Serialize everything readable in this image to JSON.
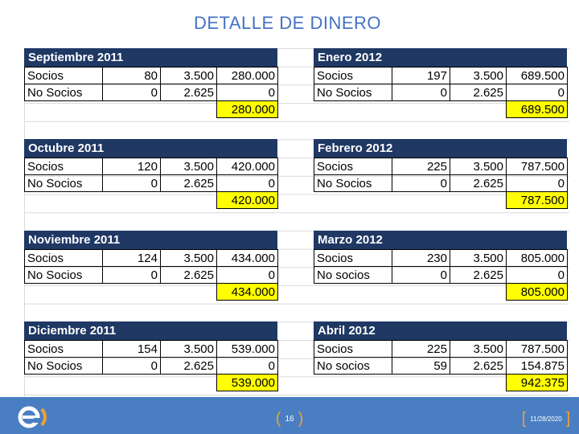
{
  "title": "DETALLE DE DINERO",
  "blocks": [
    {
      "month": "Septiembre 2011",
      "rows": [
        {
          "label": "Socios",
          "count": "80",
          "price": "3.500",
          "amount": "280.000"
        },
        {
          "label": "No Socios",
          "count": "0",
          "price": "2.625",
          "amount": "0"
        }
      ],
      "total": "280.000"
    },
    {
      "month": "Enero 2012",
      "rows": [
        {
          "label": "Socios",
          "count": "197",
          "price": "3.500",
          "amount": "689.500"
        },
        {
          "label": "No Socios",
          "count": "0",
          "price": "2.625",
          "amount": "0"
        }
      ],
      "total": "689.500"
    },
    {
      "month": "Octubre 2011",
      "rows": [
        {
          "label": "Socios",
          "count": "120",
          "price": "3.500",
          "amount": "420.000"
        },
        {
          "label": "No Socios",
          "count": "0",
          "price": "2.625",
          "amount": "0"
        }
      ],
      "total": "420.000"
    },
    {
      "month": "Febrero 2012",
      "rows": [
        {
          "label": "Socios",
          "count": "225",
          "price": "3.500",
          "amount": "787.500"
        },
        {
          "label": "No Socios",
          "count": "0",
          "price": "2.625",
          "amount": "0"
        }
      ],
      "total": "787.500"
    },
    {
      "month": "Noviembre 2011",
      "rows": [
        {
          "label": "Socios",
          "count": "124",
          "price": "3.500",
          "amount": "434.000"
        },
        {
          "label": "No Socios",
          "count": "0",
          "price": "2.625",
          "amount": "0"
        }
      ],
      "total": "434.000"
    },
    {
      "month": "Marzo 2012",
      "rows": [
        {
          "label": "Socios",
          "count": "230",
          "price": "3.500",
          "amount": "805.000"
        },
        {
          "label": "No socios",
          "count": "0",
          "price": "2.625",
          "amount": "0"
        }
      ],
      "total": "805.000"
    },
    {
      "month": "Diciembre 2011",
      "rows": [
        {
          "label": "Socios",
          "count": "154",
          "price": "3.500",
          "amount": "539.000"
        },
        {
          "label": "No Socios",
          "count": "0",
          "price": "2.625",
          "amount": "0"
        }
      ],
      "total": "539.000"
    },
    {
      "month": "Abril 2012",
      "rows": [
        {
          "label": "Socios",
          "count": "225",
          "price": "3.500",
          "amount": "787.500"
        },
        {
          "label": "No socios",
          "count": "59",
          "price": "2.625",
          "amount": "154.875"
        }
      ],
      "total": "942.375"
    }
  ],
  "footer": {
    "page_number": "16",
    "date": "11/28/2020"
  },
  "colors": {
    "header": "#1f3864",
    "total_fill": "#ffff00",
    "footer_bar": "#4a7ec2",
    "title": "#4472c4",
    "bracket": "#f0a030"
  }
}
